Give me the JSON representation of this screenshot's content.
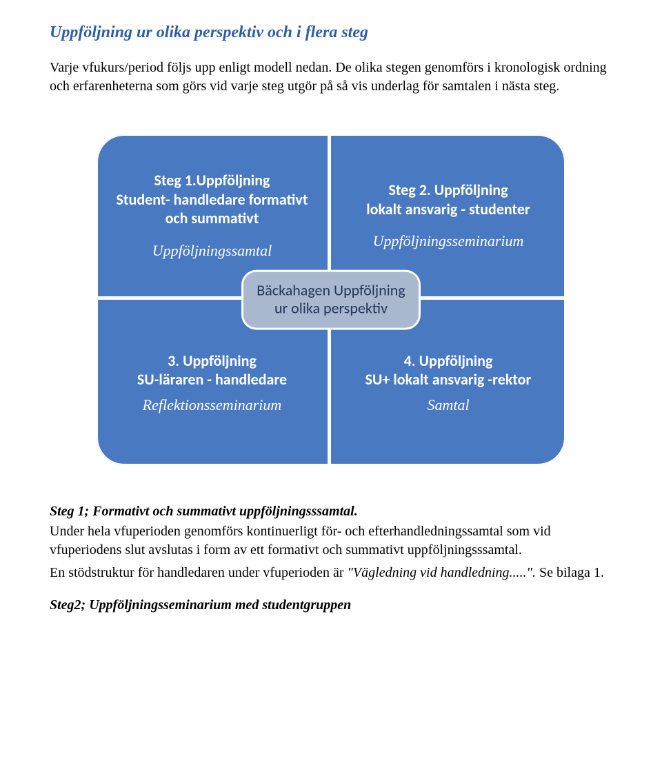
{
  "colors": {
    "title": "#2d5ea5",
    "quad_fill": "#4979c0",
    "center_fill": "#a9b8cf",
    "center_text": "#25365b",
    "white": "#ffffff",
    "body_text": "#000000"
  },
  "title": "Uppföljning ur olika perspektiv och i flera steg",
  "intro": "Varje vfukurs/period  följs upp  enligt modell nedan. De olika stegen genomförs i kronologisk ordning och  erfarenheterna som görs vid varje steg utgör på så vis underlag för samtalen i nästa steg.",
  "quadrant": {
    "tl": {
      "line1": "Steg 1.Uppföljning",
      "line2": "Student- handledare formativt och summativt",
      "line3": "Uppföljningssamtal"
    },
    "tr": {
      "line1": "Steg 2. Uppföljning",
      "line2": "lokalt ansvarig - studenter",
      "line3": "Uppföljningsseminarium"
    },
    "bl": {
      "line1": "3. Uppföljning",
      "line2": "SU-läraren  - handledare",
      "line3": "Reflektionsseminarium"
    },
    "br": {
      "line1": "4. Uppföljning",
      "line2": "SU+ lokalt ansvarig -rektor",
      "line3": "Samtal"
    },
    "center": "Bäckahagen Uppföljning ur olika perspektiv"
  },
  "step1": {
    "heading": "Steg 1; Formativt och summativt uppföljningsssamtal.",
    "body": " Under hela vfuperioden genomförs kontinuerligt för- och efterhandledningssamtal som vid vfuperiodens slut  avslutas i form av ett formativt och summativt uppföljningsssamtal.",
    "note_pre": "En stödstruktur för handledaren under vfuperioden är ",
    "note_ital": "\"Vägledning vid  handledning.....\".",
    "note_post": " Se bilaga 1."
  },
  "step2_heading": "Steg2; Uppföljningsseminarium med studentgruppen"
}
